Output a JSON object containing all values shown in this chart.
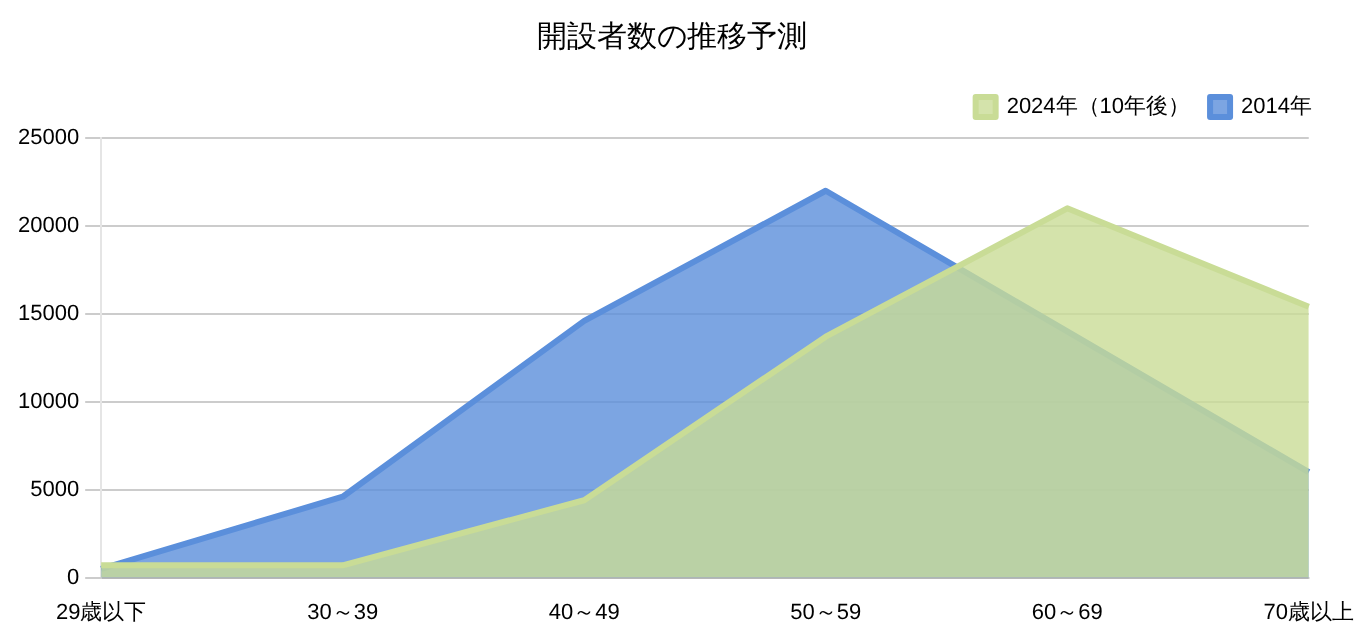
{
  "chart_data": {
    "type": "area",
    "title": "開設者数の推移予測",
    "categories": [
      "29歳以下",
      "30～39",
      "40～49",
      "50～59",
      "60～69",
      "70歳以上"
    ],
    "series": [
      {
        "name": "2024年（10年後）",
        "color": "#c9dc96",
        "values": [
          700,
          700,
          4400,
          13700,
          21000,
          15400
        ]
      },
      {
        "name": "2014年",
        "color": "#5b8fdb",
        "values": [
          500,
          4600,
          14600,
          22000,
          null,
          6000
        ]
      }
    ],
    "ylim": [
      0,
      25000
    ],
    "yticks": [
      0,
      5000,
      10000,
      15000,
      20000,
      25000
    ],
    "grid": "y",
    "legend": "top right"
  }
}
